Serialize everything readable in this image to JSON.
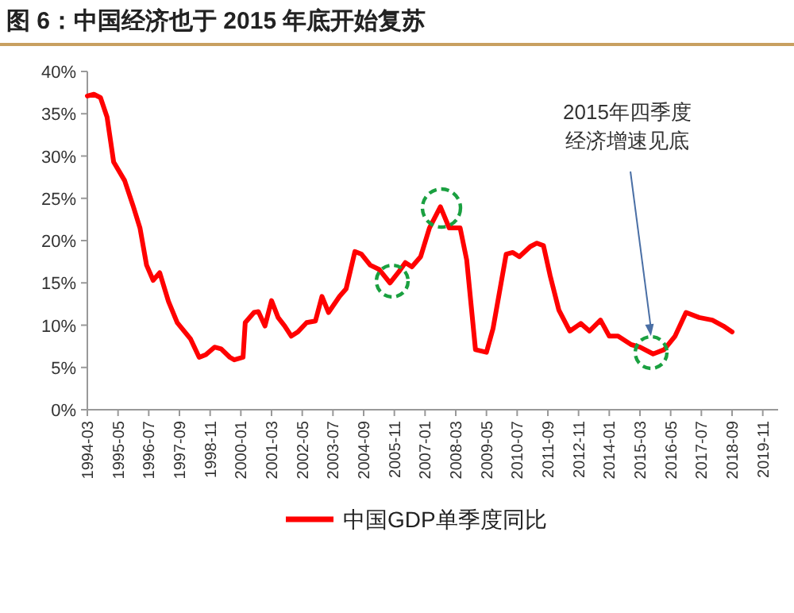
{
  "chart_data": {
    "type": "line",
    "title": "图 6：中国经济也于 2015 年底开始复苏",
    "x": [
      "1994-03",
      "1994-06",
      "1994-09",
      "1994-12",
      "1995-03",
      "1995-08",
      "1995-12",
      "1996-03",
      "1996-06",
      "1996-09",
      "1996-12",
      "1997-04",
      "1997-08",
      "1998-02",
      "1998-06",
      "1998-09",
      "1999-01",
      "1999-04",
      "1999-08",
      "1999-10",
      "2000-02",
      "2000-03",
      "2000-07",
      "2000-09",
      "2000-12",
      "2001-03",
      "2001-06",
      "2001-09",
      "2001-12",
      "2002-03",
      "2002-07",
      "2002-11",
      "2003-02",
      "2003-05",
      "2003-10",
      "2004-01",
      "2004-05",
      "2004-08",
      "2004-12",
      "2005-04",
      "2005-09",
      "2006-01",
      "2006-04",
      "2006-07",
      "2006-11",
      "2007-03",
      "2007-08",
      "2007-12",
      "2008-05",
      "2008-08",
      "2008-12",
      "2009-05",
      "2009-08",
      "2010-02",
      "2010-05",
      "2010-08",
      "2011-01",
      "2011-04",
      "2011-07",
      "2011-10",
      "2012-02",
      "2012-07",
      "2012-12",
      "2013-04",
      "2013-09",
      "2014-01",
      "2014-05",
      "2014-11",
      "2015-03",
      "2015-09",
      "2016-02",
      "2016-07",
      "2016-12",
      "2017-06",
      "2017-12",
      "2018-05",
      "2018-09"
    ],
    "series": [
      {
        "name": "中国GDP单季度同比",
        "color": "#ff0000",
        "values": [
          37.1,
          37.3,
          36.9,
          34.6,
          29.3,
          27.1,
          24.0,
          21.5,
          17.1,
          15.3,
          16.2,
          12.8,
          10.3,
          8.4,
          6.2,
          6.5,
          7.4,
          7.2,
          6.2,
          5.9,
          6.2,
          10.3,
          11.5,
          11.6,
          9.9,
          12.9,
          10.9,
          9.9,
          8.7,
          9.2,
          10.3,
          10.5,
          13.4,
          11.5,
          13.4,
          14.3,
          18.7,
          18.4,
          17.1,
          16.6,
          15.0,
          16.3,
          17.4,
          16.9,
          18.1,
          21.5,
          24.0,
          21.5,
          21.5,
          17.7,
          7.1,
          6.8,
          9.6,
          18.4,
          18.6,
          18.1,
          19.3,
          19.7,
          19.4,
          15.9,
          11.8,
          9.3,
          10.2,
          9.3,
          10.6,
          8.7,
          8.7,
          7.7,
          7.4,
          6.6,
          7.1,
          8.7,
          11.5,
          10.9,
          10.6,
          9.9,
          9.2
        ]
      }
    ],
    "xlim": [
      "1994-03",
      "2020-06"
    ],
    "xticks": [
      "1994-03",
      "1995-05",
      "1996-07",
      "1997-09",
      "1998-11",
      "2000-01",
      "2001-03",
      "2002-05",
      "2003-07",
      "2004-09",
      "2005-11",
      "2007-01",
      "2008-03",
      "2009-05",
      "2010-07",
      "2011-09",
      "2012-11",
      "2014-01",
      "2015-03",
      "2016-05",
      "2017-07",
      "2018-09",
      "2019-11"
    ],
    "ylim": [
      0,
      40
    ],
    "yticks": [
      {
        "value": 0,
        "label": "0%"
      },
      {
        "value": 5,
        "label": "5%"
      },
      {
        "value": 10,
        "label": "10%"
      },
      {
        "value": 15,
        "label": "15%"
      },
      {
        "value": 20,
        "label": "20%"
      },
      {
        "value": 25,
        "label": "25%"
      },
      {
        "value": 30,
        "label": "30%"
      },
      {
        "value": 35,
        "label": "35%"
      },
      {
        "value": 40,
        "label": "40%"
      }
    ],
    "legend": "bottom",
    "annotations": [
      {
        "text": "2015年四季度经济增速见底",
        "x": "2015-08",
        "y": 8.7
      }
    ]
  }
}
